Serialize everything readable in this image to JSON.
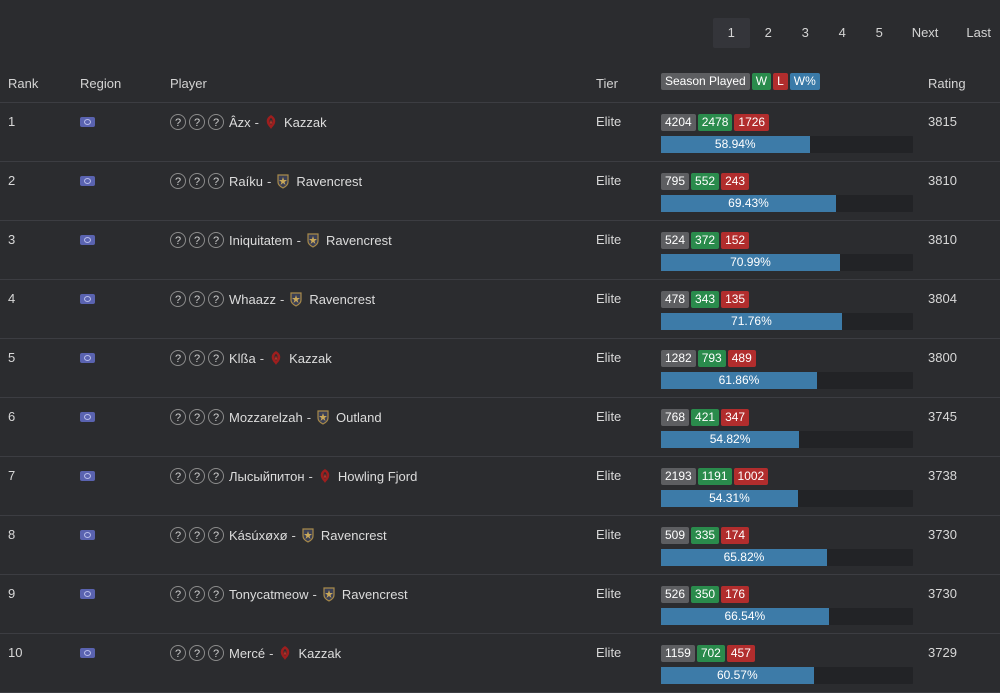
{
  "pagination": {
    "pages": [
      "1",
      "2",
      "3",
      "4",
      "5"
    ],
    "active": "1",
    "next_label": "Next",
    "last_label": "Last"
  },
  "columns": {
    "rank": "Rank",
    "region": "Region",
    "player": "Player",
    "tier": "Tier",
    "season_played": "Season Played",
    "w": "W",
    "l": "L",
    "wpct": "W%",
    "rating": "Rating"
  },
  "colors": {
    "horde": "#b22222",
    "alliance": "#8a7040",
    "win": "#2a8b4c",
    "loss": "#b12d2d",
    "bar": "#3d7ba8"
  },
  "rows": [
    {
      "rank": "1",
      "name": "Âzx",
      "realm": "Kazzak",
      "faction": "horde",
      "tier": "Elite",
      "played": "4204",
      "wins": "2478",
      "losses": "1726",
      "winrate": "58.94%",
      "rating": "3815"
    },
    {
      "rank": "2",
      "name": "Raíku",
      "realm": "Ravencrest",
      "faction": "alliance",
      "tier": "Elite",
      "played": "795",
      "wins": "552",
      "losses": "243",
      "winrate": "69.43%",
      "rating": "3810"
    },
    {
      "rank": "3",
      "name": "Iniquitatem",
      "realm": "Ravencrest",
      "faction": "alliance",
      "tier": "Elite",
      "played": "524",
      "wins": "372",
      "losses": "152",
      "winrate": "70.99%",
      "rating": "3810"
    },
    {
      "rank": "4",
      "name": "Whaazz",
      "realm": "Ravencrest",
      "faction": "alliance",
      "tier": "Elite",
      "played": "478",
      "wins": "343",
      "losses": "135",
      "winrate": "71.76%",
      "rating": "3804"
    },
    {
      "rank": "5",
      "name": "Klßa",
      "realm": "Kazzak",
      "faction": "horde",
      "tier": "Elite",
      "played": "1282",
      "wins": "793",
      "losses": "489",
      "winrate": "61.86%",
      "rating": "3800"
    },
    {
      "rank": "6",
      "name": "Mozzarelzah",
      "realm": "Outland",
      "faction": "alliance",
      "tier": "Elite",
      "played": "768",
      "wins": "421",
      "losses": "347",
      "winrate": "54.82%",
      "rating": "3745"
    },
    {
      "rank": "7",
      "name": "Лысыйпитон",
      "realm": "Howling Fjord",
      "faction": "horde",
      "tier": "Elite",
      "played": "2193",
      "wins": "1191",
      "losses": "1002",
      "winrate": "54.31%",
      "rating": "3738"
    },
    {
      "rank": "8",
      "name": "Kásúxøxø",
      "realm": "Ravencrest",
      "faction": "alliance",
      "tier": "Elite",
      "played": "509",
      "wins": "335",
      "losses": "174",
      "winrate": "65.82%",
      "rating": "3730"
    },
    {
      "rank": "9",
      "name": "Tonycatmeow",
      "realm": "Ravencrest",
      "faction": "alliance",
      "tier": "Elite",
      "played": "526",
      "wins": "350",
      "losses": "176",
      "winrate": "66.54%",
      "rating": "3730"
    },
    {
      "rank": "10",
      "name": "Mercé",
      "realm": "Kazzak",
      "faction": "horde",
      "tier": "Elite",
      "played": "1159",
      "wins": "702",
      "losses": "457",
      "winrate": "60.57%",
      "rating": "3729"
    }
  ]
}
